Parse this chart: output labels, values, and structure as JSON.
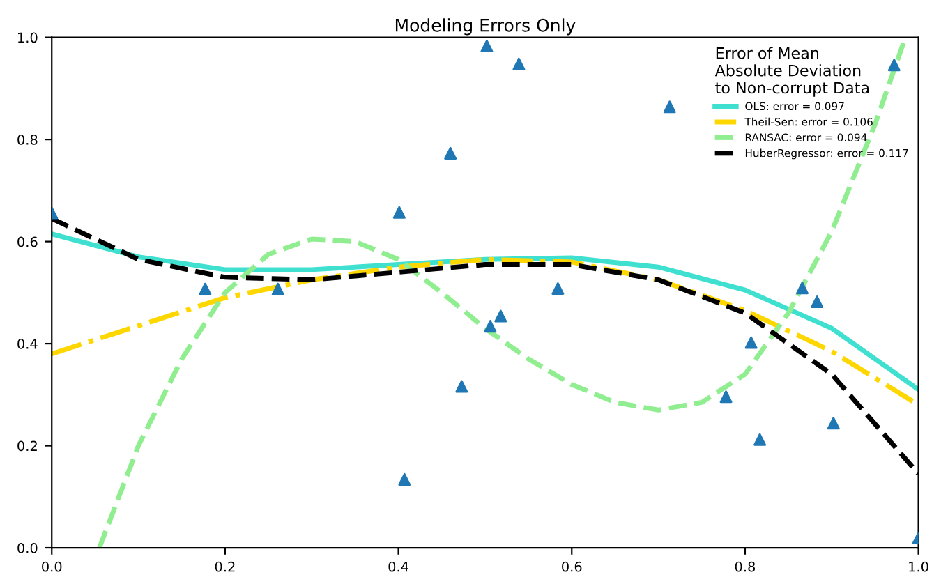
{
  "chart_data": {
    "type": "line",
    "title": "Modeling Errors Only",
    "legend_title": "Error of Mean\nAbsolute Deviation\nto Non-corrupt Data",
    "legend": "top right",
    "grid": false,
    "xlim": [
      0,
      1
    ],
    "ylim": [
      0,
      1
    ],
    "xticks": [
      {
        "value": 0,
        "label": "0.0"
      },
      0.2,
      0.4,
      0.6,
      0.8,
      {
        "value": 1,
        "label": "1.0"
      }
    ],
    "yticks": [
      {
        "value": 0,
        "label": "0.0"
      },
      0.2,
      0.4,
      0.6,
      0.8,
      {
        "value": 1,
        "label": "1.0"
      }
    ],
    "series": [
      {
        "type": "scatter",
        "marker": "triangle",
        "color": "#1f77b4",
        "x": [
          0.0,
          0.177,
          0.261,
          0.401,
          0.407,
          0.46,
          0.473,
          0.502,
          0.506,
          0.518,
          0.539,
          0.584,
          0.713,
          0.778,
          0.807,
          0.817,
          0.866,
          0.883,
          0.902,
          0.972,
          1.0
        ],
        "values": [
          0.656,
          0.507,
          0.507,
          0.657,
          0.134,
          0.773,
          0.316,
          0.983,
          0.434,
          0.454,
          0.948,
          0.508,
          0.864,
          0.296,
          0.402,
          0.212,
          0.509,
          0.482,
          0.244,
          0.946,
          0.019
        ]
      },
      {
        "name": "OLS: error = 0.097",
        "color": "#40e0d0",
        "line_style": "solid",
        "x": [
          0,
          0.1,
          0.2,
          0.3,
          0.4,
          0.5,
          0.6,
          0.7,
          0.8,
          0.9,
          1.0
        ],
        "values": [
          0.615,
          0.57,
          0.545,
          0.545,
          0.555,
          0.565,
          0.568,
          0.55,
          0.505,
          0.43,
          0.31
        ]
      },
      {
        "name": "Theil-Sen: error = 0.106",
        "color": "#ffd700",
        "line_style": "dashdot",
        "x": [
          0,
          0.1,
          0.2,
          0.3,
          0.4,
          0.5,
          0.6,
          0.7,
          0.8,
          0.9,
          1.0
        ],
        "values": [
          0.38,
          0.435,
          0.49,
          0.525,
          0.55,
          0.565,
          0.56,
          0.525,
          0.465,
          0.385,
          0.28
        ]
      },
      {
        "name": "RANSAC: error = 0.094",
        "color": "#90ee90",
        "line_style": "dashed",
        "x": [
          0.055,
          0.1,
          0.15,
          0.2,
          0.25,
          0.3,
          0.35,
          0.4,
          0.45,
          0.5,
          0.55,
          0.6,
          0.65,
          0.7,
          0.75,
          0.8,
          0.85,
          0.9,
          0.95,
          0.985
        ],
        "values": [
          0,
          0.2,
          0.37,
          0.5,
          0.575,
          0.605,
          0.6,
          0.565,
          0.5,
          0.43,
          0.37,
          0.32,
          0.285,
          0.27,
          0.285,
          0.34,
          0.46,
          0.62,
          0.83,
          1.0
        ]
      },
      {
        "name": "HuberRegressor: error = 0.117",
        "color": "#000000",
        "line_style": "dashed",
        "x": [
          0,
          0.1,
          0.2,
          0.3,
          0.4,
          0.5,
          0.6,
          0.7,
          0.8,
          0.9,
          1.0
        ],
        "values": [
          0.645,
          0.565,
          0.53,
          0.525,
          0.54,
          0.555,
          0.555,
          0.525,
          0.46,
          0.34,
          0.145
        ]
      }
    ]
  }
}
